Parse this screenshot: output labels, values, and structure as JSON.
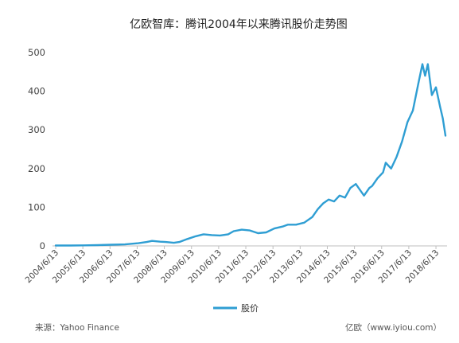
{
  "chart_data": {
    "type": "line",
    "title": "亿欧智库：腾讯2004年以来腾讯股价走势图",
    "xlabel": "",
    "ylabel": "",
    "ylim": [
      0,
      500
    ],
    "y_ticks": [
      0,
      100,
      200,
      300,
      400,
      500
    ],
    "x_ticks": [
      "2004/6/13",
      "2005/6/13",
      "2006/6/13",
      "2007/6/13",
      "2008/6/13",
      "2009/6/13",
      "2010/6/13",
      "2011/6/13",
      "2012/6/13",
      "2013/6/13",
      "2014/6/13",
      "2015/6/13",
      "2016/6/13",
      "2017/6/13",
      "2018/6/13"
    ],
    "grid": false,
    "legend_position": "bottom",
    "line_color": "#2f9ed3",
    "series": [
      {
        "name": "股价",
        "x": [
          2004.45,
          2005.0,
          2005.5,
          2006.0,
          2006.5,
          2007.0,
          2007.5,
          2007.8,
          2008.0,
          2008.3,
          2008.5,
          2008.8,
          2009.0,
          2009.3,
          2009.6,
          2009.9,
          2010.2,
          2010.5,
          2010.8,
          2011.0,
          2011.3,
          2011.6,
          2011.9,
          2012.2,
          2012.5,
          2012.8,
          2013.0,
          2013.3,
          2013.6,
          2013.9,
          2014.1,
          2014.3,
          2014.5,
          2014.7,
          2014.9,
          2015.1,
          2015.3,
          2015.5,
          2015.65,
          2015.8,
          2016.0,
          2016.1,
          2016.3,
          2016.5,
          2016.6,
          2016.8,
          2017.0,
          2017.2,
          2017.4,
          2017.6,
          2017.8,
          2017.95,
          2018.05,
          2018.15,
          2018.3,
          2018.45,
          2018.6,
          2018.7,
          2018.8
        ],
        "y": [
          1,
          1,
          1.5,
          2,
          3,
          4,
          7,
          10,
          13,
          11,
          10,
          8,
          10,
          18,
          25,
          30,
          28,
          27,
          30,
          38,
          42,
          40,
          33,
          35,
          45,
          50,
          55,
          55,
          60,
          75,
          95,
          110,
          120,
          115,
          130,
          125,
          150,
          160,
          145,
          130,
          150,
          155,
          175,
          190,
          215,
          200,
          230,
          270,
          320,
          350,
          420,
          470,
          440,
          470,
          390,
          410,
          360,
          330,
          285
        ]
      }
    ]
  },
  "legend": {
    "label": "股价"
  },
  "footer": {
    "source": "来源：Yahoo Finance",
    "credit": "亿欧（www.iyiou.com）"
  }
}
